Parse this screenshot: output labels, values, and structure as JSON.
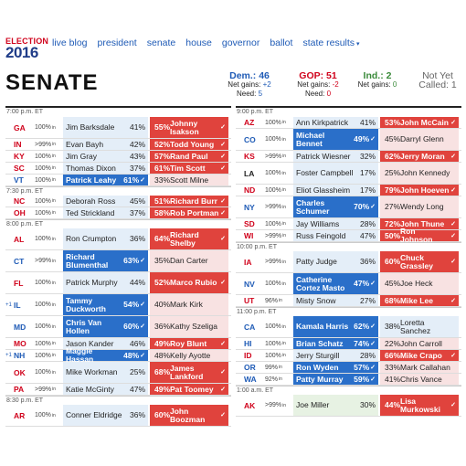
{
  "nav": {
    "brand_top": "ELECTION",
    "brand_year": "2016",
    "links": [
      "live blog",
      "president",
      "senate",
      "house",
      "governor",
      "ballot",
      "state results"
    ],
    "dropdown_caret": "▾"
  },
  "page_title": "SENATE",
  "summary": {
    "dem": {
      "label": "Dem.: 46",
      "gains_label": "Net gains:",
      "gains": "+2",
      "need_label": "Need:",
      "need": "5"
    },
    "gop": {
      "label": "GOP: 51",
      "gains_label": "Net gains:",
      "gains": "-2",
      "need_label": "Need:",
      "need": "0"
    },
    "ind": {
      "label": "Ind.: 2",
      "gains_label": "Net gains:",
      "gains": "0"
    },
    "not_yet": {
      "line1": "Not Yet",
      "line2": "Called: 1"
    }
  },
  "pct_in_suffix": "in",
  "win_icon": "✓",
  "left_groups": [
    {
      "time": "7:00 p.m. ET",
      "races": [
        {
          "state": "GA",
          "party": "R",
          "reporting": "100%",
          "a": {
            "name": "Jim Barksdale",
            "pct": "41%",
            "party": "D",
            "win": false
          },
          "b": {
            "name": "Johnny Isakson",
            "pct": "55%",
            "party": "R",
            "win": true
          },
          "tall": true
        },
        {
          "state": "IN",
          "party": "R",
          "reporting": ">99%",
          "a": {
            "name": "Evan Bayh",
            "pct": "42%",
            "party": "D",
            "win": false
          },
          "b": {
            "name": "Todd Young",
            "pct": "52%",
            "party": "R",
            "win": true
          }
        },
        {
          "state": "KY",
          "party": "R",
          "reporting": "100%",
          "a": {
            "name": "Jim Gray",
            "pct": "43%",
            "party": "D",
            "win": false
          },
          "b": {
            "name": "Rand Paul",
            "pct": "57%",
            "party": "R",
            "win": true
          }
        },
        {
          "state": "SC",
          "party": "R",
          "reporting": "100%",
          "a": {
            "name": "Thomas Dixon",
            "pct": "37%",
            "party": "D",
            "win": false
          },
          "b": {
            "name": "Tim Scott",
            "pct": "61%",
            "party": "R",
            "win": true
          }
        },
        {
          "state": "VT",
          "party": "D",
          "reporting": "100%",
          "a": {
            "name": "Patrick Leahy",
            "pct": "61%",
            "party": "D",
            "win": true
          },
          "b": {
            "name": "Scott Milne",
            "pct": "33%",
            "party": "R",
            "win": false
          }
        }
      ]
    },
    {
      "time": "7:30 p.m. ET",
      "races": [
        {
          "state": "NC",
          "party": "R",
          "reporting": "100%",
          "a": {
            "name": "Deborah Ross",
            "pct": "45%",
            "party": "D",
            "win": false
          },
          "b": {
            "name": "Richard Burr",
            "pct": "51%",
            "party": "R",
            "win": true
          }
        },
        {
          "state": "OH",
          "party": "R",
          "reporting": "100%",
          "a": {
            "name": "Ted Strickland",
            "pct": "37%",
            "party": "D",
            "win": false
          },
          "b": {
            "name": "Rob Portman",
            "pct": "58%",
            "party": "R",
            "win": true
          }
        }
      ]
    },
    {
      "time": "8:00 p.m. ET",
      "races": [
        {
          "state": "AL",
          "party": "R",
          "reporting": "100%",
          "a": {
            "name": "Ron Crumpton",
            "pct": "36%",
            "party": "D",
            "win": false
          },
          "b": {
            "name": "Richard Shelby",
            "pct": "64%",
            "party": "R",
            "win": true
          },
          "tall": true
        },
        {
          "state": "CT",
          "party": "D",
          "reporting": ">99%",
          "a": {
            "name": "Richard Blumenthal",
            "pct": "63%",
            "party": "D",
            "win": true
          },
          "b": {
            "name": "Dan Carter",
            "pct": "35%",
            "party": "R",
            "win": false
          },
          "tall": true
        },
        {
          "state": "FL",
          "party": "R",
          "reporting": "100%",
          "a": {
            "name": "Patrick Murphy",
            "pct": "44%",
            "party": "D",
            "win": false
          },
          "b": {
            "name": "Marco Rubio",
            "pct": "52%",
            "party": "R",
            "win": true
          },
          "tall": true
        },
        {
          "state": "IL",
          "party": "D",
          "gain": "+1",
          "reporting": "100%",
          "a": {
            "name": "Tammy Duckworth",
            "pct": "54%",
            "party": "D",
            "win": true
          },
          "b": {
            "name": "Mark Kirk",
            "pct": "40%",
            "party": "R",
            "win": false
          },
          "tall": true
        },
        {
          "state": "MD",
          "party": "D",
          "reporting": "100%",
          "a": {
            "name": "Chris Van Hollen",
            "pct": "60%",
            "party": "D",
            "win": true
          },
          "b": {
            "name": "Kathy Szeliga",
            "pct": "36%",
            "party": "R",
            "win": false
          },
          "tall": true
        },
        {
          "state": "MO",
          "party": "R",
          "reporting": "100%",
          "a": {
            "name": "Jason Kander",
            "pct": "46%",
            "party": "D",
            "win": false
          },
          "b": {
            "name": "Roy Blunt",
            "pct": "49%",
            "party": "R",
            "win": true
          }
        },
        {
          "state": "NH",
          "party": "D",
          "gain": "+1",
          "reporting": "100%",
          "a": {
            "name": "Maggie Hassan",
            "pct": "48%",
            "party": "D",
            "win": true
          },
          "b": {
            "name": "Kelly Ayotte",
            "pct": "48%",
            "party": "R",
            "win": false
          }
        },
        {
          "state": "OK",
          "party": "R",
          "reporting": "100%",
          "a": {
            "name": "Mike Workman",
            "pct": "25%",
            "party": "D",
            "win": false
          },
          "b": {
            "name": "James Lankford",
            "pct": "68%",
            "party": "R",
            "win": true
          },
          "tall": true
        },
        {
          "state": "PA",
          "party": "R",
          "reporting": ">99%",
          "a": {
            "name": "Katie McGinty",
            "pct": "47%",
            "party": "D",
            "win": false
          },
          "b": {
            "name": "Pat Toomey",
            "pct": "49%",
            "party": "R",
            "win": true
          }
        }
      ]
    },
    {
      "time": "8:30 p.m. ET",
      "races": [
        {
          "state": "AR",
          "party": "R",
          "reporting": "100%",
          "a": {
            "name": "Conner Eldridge",
            "pct": "36%",
            "party": "D",
            "win": false
          },
          "b": {
            "name": "John Boozman",
            "pct": "60%",
            "party": "R",
            "win": true
          },
          "tall": true
        }
      ]
    }
  ],
  "right_groups": [
    {
      "time": "9:00 p.m. ET",
      "races": [
        {
          "state": "AZ",
          "party": "R",
          "reporting": "100%",
          "a": {
            "name": "Ann Kirkpatrick",
            "pct": "41%",
            "party": "D",
            "win": false
          },
          "b": {
            "name": "John McCain",
            "pct": "53%",
            "party": "R",
            "win": true
          }
        },
        {
          "state": "CO",
          "party": "D",
          "reporting": "100%",
          "a": {
            "name": "Michael Bennet",
            "pct": "49%",
            "party": "D",
            "win": true
          },
          "b": {
            "name": "Darryl Glenn",
            "pct": "45%",
            "party": "R",
            "win": false
          },
          "tall": true
        },
        {
          "state": "KS",
          "party": "R",
          "reporting": ">99%",
          "a": {
            "name": "Patrick Wiesner",
            "pct": "32%",
            "party": "D",
            "win": false
          },
          "b": {
            "name": "Jerry Moran",
            "pct": "62%",
            "party": "R",
            "win": true
          }
        },
        {
          "state": "LA",
          "party": "",
          "reporting": "100%",
          "a": {
            "name": "Foster Campbell",
            "pct": "17%",
            "party": "D",
            "win": false
          },
          "b": {
            "name": "John Kennedy",
            "pct": "25%",
            "party": "R",
            "win": false
          },
          "tall": true
        },
        {
          "state": "ND",
          "party": "R",
          "reporting": "100%",
          "a": {
            "name": "Eliot Glassheim",
            "pct": "17%",
            "party": "D",
            "win": false
          },
          "b": {
            "name": "John Hoeven",
            "pct": "79%",
            "party": "R",
            "win": true
          }
        },
        {
          "state": "NY",
          "party": "D",
          "reporting": ">99%",
          "a": {
            "name": "Charles Schumer",
            "pct": "70%",
            "party": "D",
            "win": true
          },
          "b": {
            "name": "Wendy Long",
            "pct": "27%",
            "party": "R",
            "win": false
          },
          "tall": true
        },
        {
          "state": "SD",
          "party": "R",
          "reporting": "100%",
          "a": {
            "name": "Jay Williams",
            "pct": "28%",
            "party": "D",
            "win": false
          },
          "b": {
            "name": "John Thune",
            "pct": "72%",
            "party": "R",
            "win": true
          }
        },
        {
          "state": "WI",
          "party": "R",
          "reporting": ">99%",
          "a": {
            "name": "Russ Feingold",
            "pct": "47%",
            "party": "D",
            "win": false
          },
          "b": {
            "name": "Ron Johnson",
            "pct": "50%",
            "party": "R",
            "win": true
          }
        }
      ]
    },
    {
      "time": "10:00 p.m. ET",
      "races": [
        {
          "state": "IA",
          "party": "R",
          "reporting": ">99%",
          "a": {
            "name": "Patty Judge",
            "pct": "36%",
            "party": "D",
            "win": false
          },
          "b": {
            "name": "Chuck Grassley",
            "pct": "60%",
            "party": "R",
            "win": true
          },
          "tall": true
        },
        {
          "state": "NV",
          "party": "D",
          "reporting": "100%",
          "a": {
            "name": "Catherine Cortez Masto",
            "pct": "47%",
            "party": "D",
            "win": true
          },
          "b": {
            "name": "Joe Heck",
            "pct": "45%",
            "party": "R",
            "win": false
          },
          "tall": true
        },
        {
          "state": "UT",
          "party": "R",
          "reporting": "96%",
          "a": {
            "name": "Misty Snow",
            "pct": "27%",
            "party": "D",
            "win": false
          },
          "b": {
            "name": "Mike Lee",
            "pct": "68%",
            "party": "R",
            "win": true
          }
        }
      ]
    },
    {
      "time": "11:00 p.m. ET",
      "races": [
        {
          "state": "CA",
          "party": "D",
          "reporting": "100%",
          "a": {
            "name": "Kamala Harris",
            "pct": "62%",
            "party": "D",
            "win": true
          },
          "b": {
            "name": "Loretta Sanchez",
            "pct": "38%",
            "party": "D",
            "win": false
          },
          "tall": true
        },
        {
          "state": "HI",
          "party": "D",
          "reporting": "100%",
          "a": {
            "name": "Brian Schatz",
            "pct": "74%",
            "party": "D",
            "win": true
          },
          "b": {
            "name": "John Carroll",
            "pct": "22%",
            "party": "R",
            "win": false
          }
        },
        {
          "state": "ID",
          "party": "R",
          "reporting": "100%",
          "a": {
            "name": "Jerry Sturgill",
            "pct": "28%",
            "party": "D",
            "win": false
          },
          "b": {
            "name": "Mike Crapo",
            "pct": "66%",
            "party": "R",
            "win": true
          }
        },
        {
          "state": "OR",
          "party": "D",
          "reporting": "99%",
          "a": {
            "name": "Ron Wyden",
            "pct": "57%",
            "party": "D",
            "win": true
          },
          "b": {
            "name": "Mark Callahan",
            "pct": "33%",
            "party": "R",
            "win": false
          }
        },
        {
          "state": "WA",
          "party": "D",
          "reporting": "92%",
          "a": {
            "name": "Patty Murray",
            "pct": "59%",
            "party": "D",
            "win": true
          },
          "b": {
            "name": "Chris Vance",
            "pct": "41%",
            "party": "R",
            "win": false
          }
        }
      ]
    },
    {
      "time": "1:00 a.m. ET",
      "races": [
        {
          "state": "AK",
          "party": "R",
          "reporting": ">99%",
          "a": {
            "name": "Joe Miller",
            "pct": "30%",
            "party": "I",
            "win": false
          },
          "b": {
            "name": "Lisa Murkowski",
            "pct": "44%",
            "party": "R",
            "win": true
          },
          "tall": true
        }
      ]
    }
  ]
}
